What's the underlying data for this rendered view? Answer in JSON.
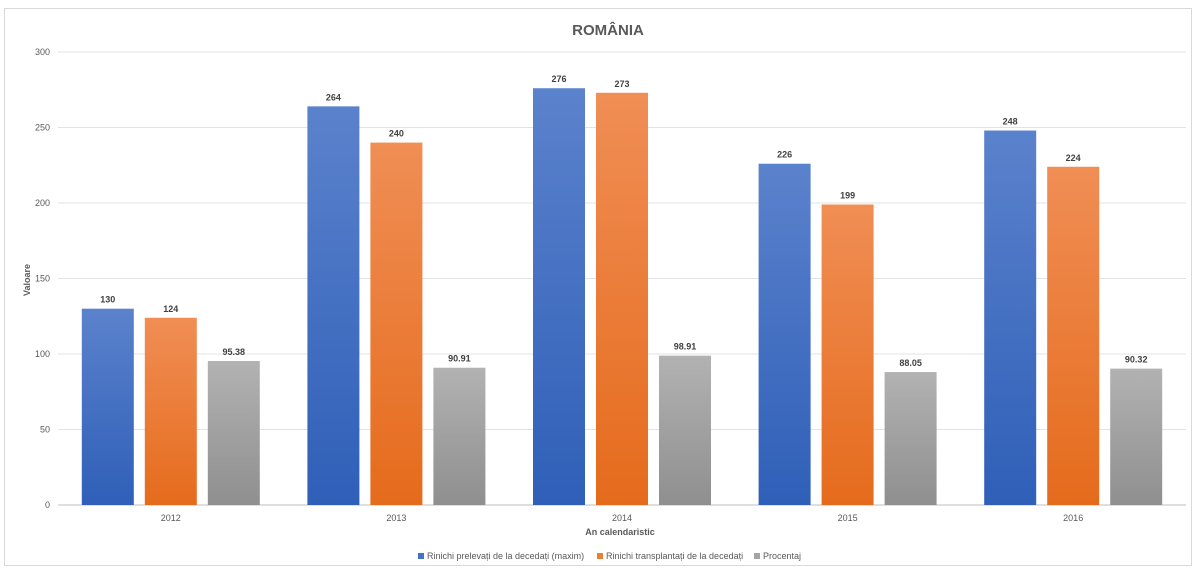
{
  "chart_data": {
    "type": "bar",
    "title": "ROMÂNIA",
    "xlabel": "An calendaristic",
    "ylabel": "Valoare",
    "categories": [
      "2012",
      "2013",
      "2014",
      "2015",
      "2016"
    ],
    "ylim": [
      0,
      300
    ],
    "yticks": [
      0,
      50,
      100,
      150,
      200,
      250,
      300
    ],
    "grid": true,
    "legend_position": "bottom",
    "series": [
      {
        "name": "Rinichi prelevați de la decedați (maxim)",
        "color": "#4472c4",
        "values": [
          130,
          264,
          276,
          226,
          248
        ],
        "labels": [
          "130",
          "264",
          "276",
          "226",
          "248"
        ]
      },
      {
        "name": "Rinichi transplantați de la decedați",
        "color": "#ed7d31",
        "values": [
          124,
          240,
          273,
          199,
          224
        ],
        "labels": [
          "124",
          "240",
          "273",
          "199",
          "224"
        ]
      },
      {
        "name": "Procentaj",
        "color": "#a5a5a5",
        "values": [
          95.38,
          90.91,
          98.91,
          88.05,
          90.32
        ],
        "labels": [
          "95.38",
          "90.91",
          "98.91",
          "88.05",
          "90.32"
        ]
      }
    ]
  }
}
